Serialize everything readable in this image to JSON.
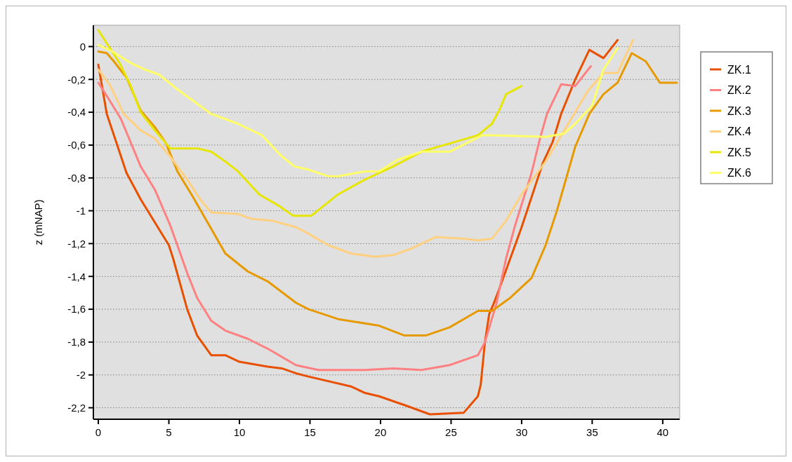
{
  "chart_data": {
    "type": "line",
    "ylabel": "z (mNAP)",
    "xlim": [
      -0.35,
      41.2
    ],
    "ylim": [
      -2.27,
      0.13
    ],
    "xticks": [
      0,
      5,
      10,
      15,
      20,
      25,
      30,
      35,
      40
    ],
    "yticks": [
      {
        "value": 0,
        "label": "0"
      },
      {
        "value": -0.2,
        "label": "-0,2"
      },
      {
        "value": -0.4,
        "label": "-0,4"
      },
      {
        "value": -0.6,
        "label": "-0,6"
      },
      {
        "value": -0.8,
        "label": "-0,8"
      },
      {
        "value": -1,
        "label": "-1"
      },
      {
        "value": -1.2,
        "label": "-1,2"
      },
      {
        "value": -1.4,
        "label": "-1,4"
      },
      {
        "value": -1.6,
        "label": "-1,6"
      },
      {
        "value": -1.8,
        "label": "-1,8"
      },
      {
        "value": -2,
        "label": "-2"
      },
      {
        "value": -2.2,
        "label": "-2,2"
      }
    ],
    "grid": "y",
    "legend": "top right",
    "marker": "none",
    "line_style": "solid",
    "series": [
      {
        "name": "ZK.1",
        "color": "#e85000",
        "x": [
          0,
          0.6,
          2,
          3,
          4,
          5,
          5.3,
          6.3,
          7,
          8,
          9,
          10,
          12,
          13,
          14,
          14.9,
          17.9,
          18.9,
          19.9,
          21.9,
          23.5,
          25.9,
          26.9,
          27.1,
          27.4,
          27.7,
          28,
          28.4,
          30,
          31.5,
          32.2,
          32.8,
          33.8,
          34.8,
          35.8,
          36.8
        ],
        "values": [
          -0.11,
          -0.41,
          -0.77,
          -0.93,
          -1.07,
          -1.21,
          -1.29,
          -1.6,
          -1.76,
          -1.88,
          -1.88,
          -1.92,
          -1.95,
          -1.96,
          -1.99,
          -2.01,
          -2.07,
          -2.11,
          -2.13,
          -2.19,
          -2.24,
          -2.23,
          -2.13,
          -2.06,
          -1.8,
          -1.63,
          -1.57,
          -1.48,
          -1.1,
          -0.71,
          -0.58,
          -0.41,
          -0.2,
          -0.02,
          -0.07,
          0.04
        ]
      },
      {
        "name": "ZK.2",
        "color": "#ff8080",
        "x": [
          0,
          0.6,
          1.6,
          3,
          4,
          5.1,
          5.6,
          6.3,
          7,
          8,
          9,
          10.6,
          12,
          14,
          15.6,
          18.9,
          20.9,
          22.9,
          24.9,
          26.9,
          27.4,
          28.2,
          28.9,
          29.5,
          30.7,
          31.3,
          31.8,
          32.8,
          33.8,
          34.9
        ],
        "values": [
          -0.22,
          -0.3,
          -0.44,
          -0.73,
          -0.87,
          -1.09,
          -1.21,
          -1.38,
          -1.53,
          -1.67,
          -1.73,
          -1.78,
          -1.84,
          -1.94,
          -1.97,
          -1.97,
          -1.96,
          -1.97,
          -1.94,
          -1.88,
          -1.8,
          -1.57,
          -1.29,
          -1.1,
          -0.77,
          -0.56,
          -0.41,
          -0.23,
          -0.24,
          -0.12
        ]
      },
      {
        "name": "ZK.3",
        "color": "#e69a00",
        "x": [
          0,
          0.6,
          1.1,
          2,
          3,
          4,
          4.8,
          5.6,
          6.6,
          8,
          9,
          10.6,
          12,
          14,
          14.9,
          17,
          19.9,
          21.7,
          23.2,
          24.9,
          26.9,
          27.9,
          29.2,
          30.7,
          31.7,
          32.5,
          33.8,
          34.8,
          35.8,
          36.8,
          37.8,
          38.8,
          39.8,
          41
        ],
        "values": [
          -0.03,
          -0.04,
          -0.09,
          -0.19,
          -0.39,
          -0.49,
          -0.59,
          -0.76,
          -0.9,
          -1.11,
          -1.26,
          -1.37,
          -1.43,
          -1.56,
          -1.6,
          -1.66,
          -1.7,
          -1.76,
          -1.76,
          -1.71,
          -1.61,
          -1.61,
          -1.53,
          -1.41,
          -1.21,
          -1,
          -0.61,
          -0.41,
          -0.29,
          -0.22,
          -0.04,
          -0.09,
          -0.22,
          -0.22
        ]
      },
      {
        "name": "ZK.4",
        "color": "#ffd080",
        "x": [
          0,
          0.8,
          1.8,
          3,
          4,
          5,
          6.3,
          7.3,
          8,
          9.9,
          10.9,
          12.3,
          14,
          14.9,
          16.3,
          17.9,
          19.6,
          20.9,
          22.2,
          23.9,
          25.9,
          26.9,
          27.9,
          28.9,
          30,
          31.7,
          33.3,
          34.7,
          35.8,
          36.8,
          37.9
        ],
        "values": [
          -0.14,
          -0.23,
          -0.41,
          -0.51,
          -0.56,
          -0.66,
          -0.81,
          -0.94,
          -1.01,
          -1.02,
          -1.05,
          -1.06,
          -1.1,
          -1.14,
          -1.21,
          -1.26,
          -1.28,
          -1.27,
          -1.23,
          -1.16,
          -1.17,
          -1.18,
          -1.17,
          -1.06,
          -0.9,
          -0.7,
          -0.47,
          -0.27,
          -0.16,
          -0.16,
          0.04
        ]
      },
      {
        "name": "ZK.5",
        "color": "#e6e600",
        "x": [
          0,
          0.6,
          1.5,
          2.3,
          3,
          4,
          5.1,
          7,
          8,
          9,
          9.9,
          11.4,
          12.8,
          13.8,
          15.1,
          17,
          18.9,
          20.9,
          22.9,
          24.9,
          26.9,
          27.9,
          28.4,
          28.9,
          30
        ],
        "values": [
          0.1,
          0.02,
          -0.1,
          -0.24,
          -0.4,
          -0.51,
          -0.62,
          -0.62,
          -0.64,
          -0.7,
          -0.76,
          -0.9,
          -0.97,
          -1.03,
          -1.03,
          -0.9,
          -0.81,
          -0.73,
          -0.64,
          -0.59,
          -0.54,
          -0.47,
          -0.39,
          -0.29,
          -0.24
        ]
      },
      {
        "name": "ZK.6",
        "color": "#ffff66",
        "x": [
          0,
          1,
          2.3,
          3.3,
          4.3,
          5.6,
          8,
          9.9,
          11.6,
          12.9,
          13.9,
          14.9,
          16.3,
          17,
          18.9,
          19.9,
          21.2,
          22.9,
          24.9,
          27.2,
          27.9,
          31.7,
          33,
          33.8,
          35,
          35.8,
          36.8
        ],
        "values": [
          0.01,
          -0.03,
          -0.1,
          -0.14,
          -0.17,
          -0.26,
          -0.41,
          -0.47,
          -0.54,
          -0.66,
          -0.73,
          -0.75,
          -0.79,
          -0.79,
          -0.76,
          -0.76,
          -0.69,
          -0.64,
          -0.64,
          -0.54,
          -0.54,
          -0.55,
          -0.53,
          -0.47,
          -0.36,
          -0.14,
          -0.01
        ]
      }
    ]
  }
}
